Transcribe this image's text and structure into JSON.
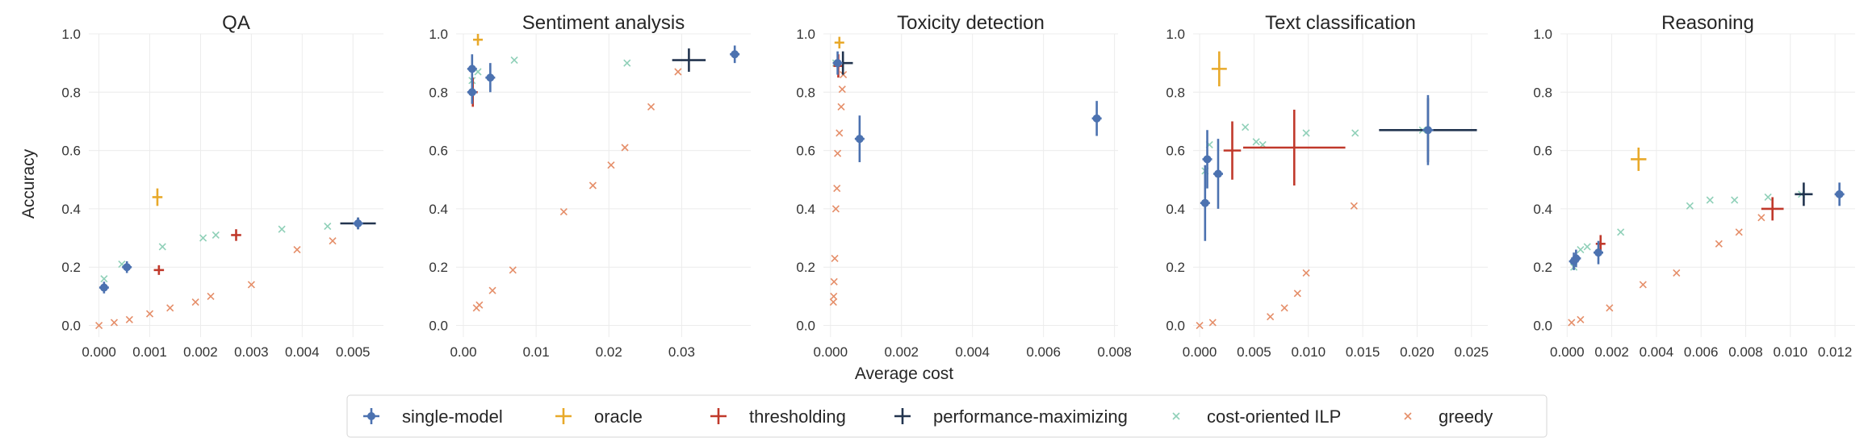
{
  "chart_data": {
    "type": "scatter",
    "xlabel": "Average cost",
    "ylabel": "Accuracy",
    "grid": true,
    "legend_position": "bottom-center",
    "colors": {
      "single-model": "#4c72b0",
      "oracle": "#e8a92a",
      "thresholding": "#c0392b",
      "performance-maximizing": "#22344f",
      "cost-oriented ILP": "#8fd0b8",
      "greedy": "#e58e69"
    },
    "legend": [
      {
        "key": "single-model",
        "label": "single-model",
        "marker": "errorbar-dot"
      },
      {
        "key": "oracle",
        "label": "oracle",
        "marker": "errorbar"
      },
      {
        "key": "thresholding",
        "label": "thresholding",
        "marker": "errorbar"
      },
      {
        "key": "performance-maximizing",
        "label": "performance-maximizing",
        "marker": "errorbar"
      },
      {
        "key": "cost-oriented ILP",
        "label": "cost-oriented ILP",
        "marker": "x"
      },
      {
        "key": "greedy",
        "label": "greedy",
        "marker": "x"
      }
    ],
    "panels": [
      {
        "title": "QA",
        "xlim": [
          -0.0002,
          0.0056
        ],
        "ylim": [
          -0.04,
          1.0
        ],
        "xticks": [
          0.0,
          0.001,
          0.002,
          0.003,
          0.004,
          0.005
        ],
        "xtick_labels": [
          "0.000",
          "0.001",
          "0.002",
          "0.003",
          "0.004",
          "0.005"
        ],
        "yticks": [
          0.0,
          0.2,
          0.4,
          0.6,
          0.8,
          1.0
        ],
        "ytick_labels": [
          "0.0",
          "0.2",
          "0.4",
          "0.6",
          "0.8",
          "1.0"
        ],
        "series": [
          {
            "key": "single-model",
            "points": [
              {
                "x": 0.0001,
                "y": 0.13,
                "xerr": 3e-05,
                "yerr": 0.02
              },
              {
                "x": 0.00055,
                "y": 0.2,
                "xerr": 3e-05,
                "yerr": 0.02
              },
              {
                "x": 0.0051,
                "y": 0.35,
                "xerr": 0.0001,
                "yerr": 0.02
              }
            ]
          },
          {
            "key": "oracle",
            "points": [
              {
                "x": 0.00115,
                "y": 0.44,
                "xerr": 0.0001,
                "yerr": 0.03
              }
            ]
          },
          {
            "key": "thresholding",
            "points": [
              {
                "x": 0.00118,
                "y": 0.19,
                "xerr": 0.0001,
                "yerr": 0.015
              },
              {
                "x": 0.0027,
                "y": 0.31,
                "xerr": 0.0001,
                "yerr": 0.02
              }
            ]
          },
          {
            "key": "performance-maximizing",
            "points": [
              {
                "x": 0.0051,
                "y": 0.35,
                "xerr": 0.00035,
                "yerr": 0.02
              }
            ]
          },
          {
            "key": "cost-oriented ILP",
            "points": [
              {
                "x": 0.0001,
                "y": 0.16
              },
              {
                "x": 0.00045,
                "y": 0.21
              },
              {
                "x": 0.00125,
                "y": 0.27
              },
              {
                "x": 0.00205,
                "y": 0.3
              },
              {
                "x": 0.0023,
                "y": 0.31
              },
              {
                "x": 0.0036,
                "y": 0.33
              },
              {
                "x": 0.0045,
                "y": 0.34
              }
            ]
          },
          {
            "key": "greedy",
            "points": [
              {
                "x": 0.0,
                "y": 0.0
              },
              {
                "x": 0.0003,
                "y": 0.01
              },
              {
                "x": 0.0006,
                "y": 0.02
              },
              {
                "x": 0.001,
                "y": 0.04
              },
              {
                "x": 0.0014,
                "y": 0.06
              },
              {
                "x": 0.0019,
                "y": 0.08
              },
              {
                "x": 0.0022,
                "y": 0.1
              },
              {
                "x": 0.003,
                "y": 0.14
              },
              {
                "x": 0.0039,
                "y": 0.26
              },
              {
                "x": 0.0046,
                "y": 0.29
              }
            ]
          }
        ]
      },
      {
        "title": "Sentiment analysis",
        "xlim": [
          -0.001,
          0.0395
        ],
        "ylim": [
          -0.04,
          1.0
        ],
        "xticks": [
          0.0,
          0.01,
          0.02,
          0.03
        ],
        "xtick_labels": [
          "0.00",
          "0.01",
          "0.02",
          "0.03"
        ],
        "yticks": [
          0.0,
          0.2,
          0.4,
          0.6,
          0.8,
          1.0
        ],
        "ytick_labels": [
          "0.0",
          "0.2",
          "0.4",
          "0.6",
          "0.8",
          "1.0"
        ],
        "series": [
          {
            "key": "single-model",
            "points": [
              {
                "x": 0.0012,
                "y": 0.88,
                "xerr": 0.0002,
                "yerr": 0.05
              },
              {
                "x": 0.0012,
                "y": 0.8,
                "xerr": 0.0002,
                "yerr": 0.04
              },
              {
                "x": 0.0037,
                "y": 0.85,
                "xerr": 0.0002,
                "yerr": 0.05
              },
              {
                "x": 0.0373,
                "y": 0.93,
                "xerr": 0.0003,
                "yerr": 0.03
              }
            ]
          },
          {
            "key": "oracle",
            "points": [
              {
                "x": 0.002,
                "y": 0.98,
                "xerr": 0.0006,
                "yerr": 0.02
              }
            ]
          },
          {
            "key": "thresholding",
            "points": [
              {
                "x": 0.0013,
                "y": 0.8,
                "xerr": 0.0002,
                "yerr": 0.05
              }
            ]
          },
          {
            "key": "performance-maximizing",
            "points": [
              {
                "x": 0.031,
                "y": 0.91,
                "xerr": 0.0023,
                "yerr": 0.04
              }
            ]
          },
          {
            "key": "cost-oriented ILP",
            "points": [
              {
                "x": 0.0012,
                "y": 0.84
              },
              {
                "x": 0.002,
                "y": 0.87
              },
              {
                "x": 0.007,
                "y": 0.91
              },
              {
                "x": 0.0225,
                "y": 0.9
              }
            ]
          },
          {
            "key": "greedy",
            "points": [
              {
                "x": 0.0018,
                "y": 0.06
              },
              {
                "x": 0.0022,
                "y": 0.07
              },
              {
                "x": 0.004,
                "y": 0.12
              },
              {
                "x": 0.0068,
                "y": 0.19
              },
              {
                "x": 0.0138,
                "y": 0.39
              },
              {
                "x": 0.0178,
                "y": 0.48
              },
              {
                "x": 0.0203,
                "y": 0.55
              },
              {
                "x": 0.0222,
                "y": 0.61
              },
              {
                "x": 0.0258,
                "y": 0.75
              },
              {
                "x": 0.0295,
                "y": 0.87
              }
            ]
          }
        ]
      },
      {
        "title": "Toxicity detection",
        "xlim": [
          -0.0002,
          0.0081
        ],
        "ylim": [
          -0.04,
          1.0
        ],
        "xticks": [
          0.0,
          0.002,
          0.004,
          0.006,
          0.008
        ],
        "xtick_labels": [
          "0.000",
          "0.002",
          "0.004",
          "0.006",
          "0.008"
        ],
        "yticks": [
          0.0,
          0.2,
          0.4,
          0.6,
          0.8,
          1.0
        ],
        "ytick_labels": [
          "0.0",
          "0.2",
          "0.4",
          "0.6",
          "0.8",
          "1.0"
        ],
        "series": [
          {
            "key": "single-model",
            "points": [
              {
                "x": 0.0002,
                "y": 0.9,
                "xerr": 4e-05,
                "yerr": 0.04
              },
              {
                "x": 0.00082,
                "y": 0.64,
                "xerr": 4e-05,
                "yerr": 0.08
              },
              {
                "x": 0.0075,
                "y": 0.71,
                "xerr": 0.0001,
                "yerr": 0.06
              }
            ]
          },
          {
            "key": "oracle",
            "points": [
              {
                "x": 0.00025,
                "y": 0.97,
                "xerr": 8e-05,
                "yerr": 0.02
              }
            ]
          },
          {
            "key": "thresholding",
            "points": [
              {
                "x": 0.00022,
                "y": 0.89,
                "xerr": 5e-05,
                "yerr": 0.04
              }
            ]
          },
          {
            "key": "performance-maximizing",
            "points": [
              {
                "x": 0.00035,
                "y": 0.9,
                "xerr": 0.00028,
                "yerr": 0.04
              }
            ]
          },
          {
            "key": "cost-oriented ILP",
            "points": [
              {
                "x": 0.00015,
                "y": 0.9
              }
            ]
          },
          {
            "key": "greedy",
            "points": [
              {
                "x": 8e-05,
                "y": 0.08
              },
              {
                "x": 9e-05,
                "y": 0.1
              },
              {
                "x": 0.0001,
                "y": 0.15
              },
              {
                "x": 0.00012,
                "y": 0.23
              },
              {
                "x": 0.00015,
                "y": 0.4
              },
              {
                "x": 0.00018,
                "y": 0.47
              },
              {
                "x": 0.0002,
                "y": 0.59
              },
              {
                "x": 0.00025,
                "y": 0.66
              },
              {
                "x": 0.0003,
                "y": 0.75
              },
              {
                "x": 0.00033,
                "y": 0.81
              },
              {
                "x": 0.00036,
                "y": 0.86
              }
            ]
          }
        ]
      },
      {
        "title": "Text classification",
        "xlim": [
          -0.0006,
          0.0265
        ],
        "ylim": [
          -0.04,
          1.0
        ],
        "xticks": [
          0.0,
          0.005,
          0.01,
          0.015,
          0.02,
          0.025
        ],
        "xtick_labels": [
          "0.000",
          "0.005",
          "0.010",
          "0.015",
          "0.020",
          "0.025"
        ],
        "yticks": [
          0.0,
          0.2,
          0.4,
          0.6,
          0.8,
          1.0
        ],
        "ytick_labels": [
          "0.0",
          "0.2",
          "0.4",
          "0.6",
          "0.8",
          "1.0"
        ],
        "series": [
          {
            "key": "single-model",
            "points": [
              {
                "x": 0.0005,
                "y": 0.42,
                "xerr": 0.0001,
                "yerr": 0.13
              },
              {
                "x": 0.0007,
                "y": 0.57,
                "xerr": 0.0001,
                "yerr": 0.1
              },
              {
                "x": 0.0017,
                "y": 0.52,
                "xerr": 0.0001,
                "yerr": 0.12
              },
              {
                "x": 0.021,
                "y": 0.67,
                "xerr": 0.0005,
                "yerr": 0.12
              }
            ]
          },
          {
            "key": "oracle",
            "points": [
              {
                "x": 0.0018,
                "y": 0.88,
                "xerr": 0.0007,
                "yerr": 0.06
              }
            ]
          },
          {
            "key": "thresholding",
            "points": [
              {
                "x": 0.003,
                "y": 0.6,
                "xerr": 0.0008,
                "yerr": 0.1
              },
              {
                "x": 0.0087,
                "y": 0.61,
                "xerr": 0.0047,
                "yerr": 0.13
              }
            ]
          },
          {
            "key": "performance-maximizing",
            "points": [
              {
                "x": 0.021,
                "y": 0.67,
                "xerr": 0.0045,
                "yerr": 0.11
              }
            ]
          },
          {
            "key": "cost-oriented ILP",
            "points": [
              {
                "x": 0.0005,
                "y": 0.53
              },
              {
                "x": 0.0009,
                "y": 0.62
              },
              {
                "x": 0.0042,
                "y": 0.68
              },
              {
                "x": 0.0052,
                "y": 0.63
              },
              {
                "x": 0.0058,
                "y": 0.62
              },
              {
                "x": 0.0098,
                "y": 0.66
              },
              {
                "x": 0.0143,
                "y": 0.66
              },
              {
                "x": 0.0205,
                "y": 0.67
              }
            ]
          },
          {
            "key": "greedy",
            "points": [
              {
                "x": 0.0,
                "y": 0.0
              },
              {
                "x": 0.0012,
                "y": 0.01
              },
              {
                "x": 0.0065,
                "y": 0.03
              },
              {
                "x": 0.0078,
                "y": 0.06
              },
              {
                "x": 0.009,
                "y": 0.11
              },
              {
                "x": 0.0098,
                "y": 0.18
              },
              {
                "x": 0.0142,
                "y": 0.41
              }
            ]
          }
        ]
      },
      {
        "title": "Reasoning",
        "xlim": [
          -0.0003,
          0.0129
        ],
        "ylim": [
          -0.04,
          1.0
        ],
        "xticks": [
          0.0,
          0.002,
          0.004,
          0.006,
          0.008,
          0.01,
          0.012
        ],
        "xtick_labels": [
          "0.000",
          "0.002",
          "0.004",
          "0.006",
          "0.008",
          "0.010",
          "0.012"
        ],
        "yticks": [
          0.0,
          0.2,
          0.4,
          0.6,
          0.8,
          1.0
        ],
        "ytick_labels": [
          "0.0",
          "0.2",
          "0.4",
          "0.6",
          "0.8",
          "1.0"
        ],
        "series": [
          {
            "key": "single-model",
            "points": [
              {
                "x": 0.0003,
                "y": 0.22,
                "xerr": 5e-05,
                "yerr": 0.03
              },
              {
                "x": 0.0004,
                "y": 0.23,
                "xerr": 5e-05,
                "yerr": 0.03
              },
              {
                "x": 0.0014,
                "y": 0.25,
                "xerr": 5e-05,
                "yerr": 0.04
              },
              {
                "x": 0.0122,
                "y": 0.45,
                "xerr": 0.0002,
                "yerr": 0.04
              }
            ]
          },
          {
            "key": "oracle",
            "points": [
              {
                "x": 0.0032,
                "y": 0.57,
                "xerr": 0.00035,
                "yerr": 0.04
              }
            ]
          },
          {
            "key": "thresholding",
            "points": [
              {
                "x": 0.0015,
                "y": 0.28,
                "xerr": 0.00015,
                "yerr": 0.03
              },
              {
                "x": 0.0092,
                "y": 0.4,
                "xerr": 0.0005,
                "yerr": 0.04
              }
            ]
          },
          {
            "key": "performance-maximizing",
            "points": [
              {
                "x": 0.0106,
                "y": 0.45,
                "xerr": 0.0004,
                "yerr": 0.04
              }
            ]
          },
          {
            "key": "cost-oriented ILP",
            "points": [
              {
                "x": 0.0003,
                "y": 0.2
              },
              {
                "x": 0.0006,
                "y": 0.26
              },
              {
                "x": 0.0009,
                "y": 0.27
              },
              {
                "x": 0.0024,
                "y": 0.32
              },
              {
                "x": 0.0055,
                "y": 0.41
              },
              {
                "x": 0.0064,
                "y": 0.43
              },
              {
                "x": 0.0075,
                "y": 0.43
              },
              {
                "x": 0.009,
                "y": 0.44
              },
              {
                "x": 0.0105,
                "y": 0.45
              }
            ]
          },
          {
            "key": "greedy",
            "points": [
              {
                "x": 0.0002,
                "y": 0.01
              },
              {
                "x": 0.0006,
                "y": 0.02
              },
              {
                "x": 0.0019,
                "y": 0.06
              },
              {
                "x": 0.0034,
                "y": 0.14
              },
              {
                "x": 0.0049,
                "y": 0.18
              },
              {
                "x": 0.0068,
                "y": 0.28
              },
              {
                "x": 0.0077,
                "y": 0.32
              },
              {
                "x": 0.0087,
                "y": 0.37
              }
            ]
          }
        ]
      }
    ]
  }
}
